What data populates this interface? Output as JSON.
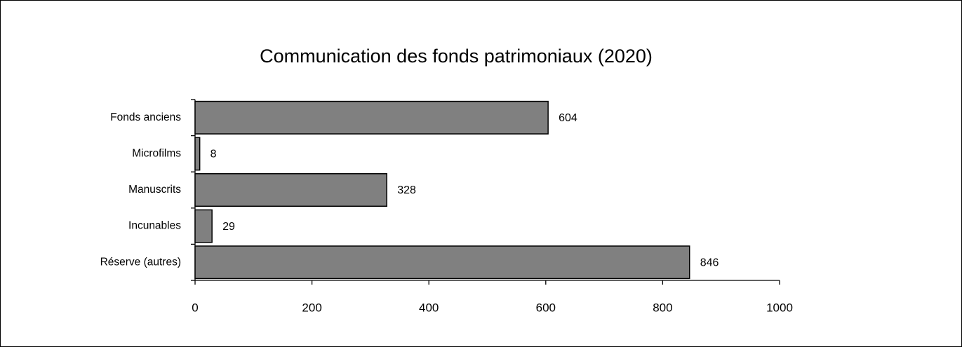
{
  "chart_data": {
    "type": "bar",
    "orientation": "horizontal",
    "title": "Communication des fonds patrimoniaux (2020)",
    "categories": [
      "Fonds anciens",
      "Microfilms",
      "Manuscrits",
      "Incunables",
      "Réserve (autres)"
    ],
    "values": [
      604,
      8,
      328,
      29,
      846
    ],
    "color": "#808080",
    "xlim": [
      0,
      1000
    ],
    "xticks": [
      0,
      200,
      400,
      600,
      800,
      1000
    ],
    "grid": false
  }
}
